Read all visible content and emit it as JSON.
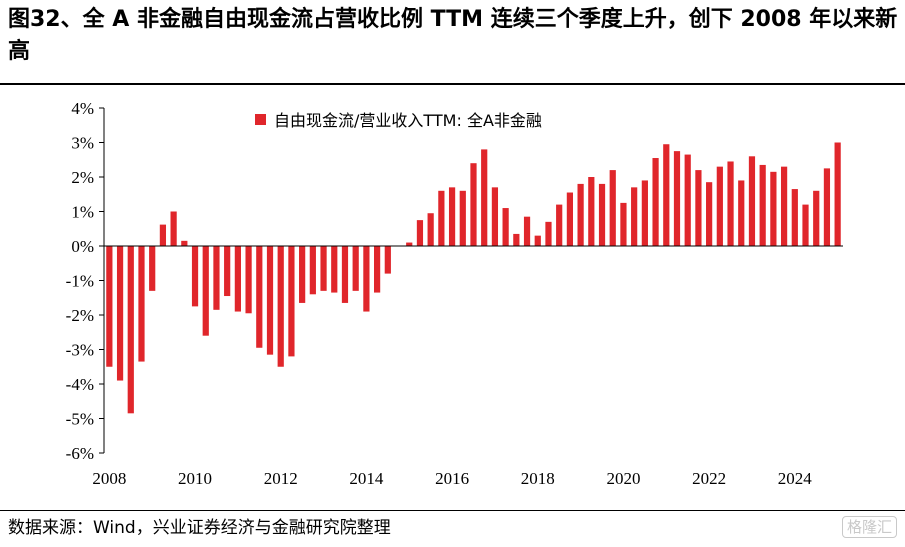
{
  "header": {
    "title": "图32、全 A 非金融自由现金流占营收比例 TTM 连续三个季度上升，创下 2008 年以来新高"
  },
  "footer": {
    "source": "数据来源：Wind，兴业证券经济与金融研究院整理",
    "watermark": "格隆汇"
  },
  "chart_data": {
    "type": "bar",
    "title": "",
    "legend": [
      "自由现金流/营业收入TTM:  全A非金融"
    ],
    "legend_position": "top-center",
    "color": "#e0262b",
    "xlabel": "",
    "ylabel": "",
    "ylim": [
      -6,
      4
    ],
    "yticks": [
      -6,
      -5,
      -4,
      -3,
      -2,
      -1,
      0,
      1,
      2,
      3,
      4
    ],
    "ytick_labels": [
      "-6%",
      "-5%",
      "-4%",
      "-3%",
      "-2%",
      "-1%",
      "0%",
      "1%",
      "2%",
      "3%",
      "4%"
    ],
    "xtick_labels": [
      "2008",
      "2010",
      "2012",
      "2014",
      "2016",
      "2018",
      "2020",
      "2022",
      "2024"
    ],
    "first_period": "2008Q1",
    "values": [
      -3.5,
      -3.9,
      -4.85,
      -3.35,
      -1.3,
      0.62,
      1.0,
      0.15,
      -1.75,
      -2.6,
      -1.85,
      -1.45,
      -1.9,
      -1.95,
      -2.95,
      -3.15,
      -3.5,
      -3.2,
      -1.65,
      -1.4,
      -1.3,
      -1.35,
      -1.65,
      -1.3,
      -1.9,
      -1.35,
      -0.8,
      0.0,
      0.1,
      0.75,
      0.95,
      1.6,
      1.7,
      1.6,
      2.4,
      2.8,
      1.7,
      1.1,
      0.35,
      0.85,
      0.3,
      0.7,
      1.2,
      1.55,
      1.8,
      2.0,
      1.8,
      2.2,
      1.25,
      1.7,
      1.9,
      2.55,
      2.95,
      2.75,
      2.65,
      2.2,
      1.85,
      2.3,
      2.45,
      1.9,
      2.6,
      2.35,
      2.15,
      2.3,
      1.65,
      1.2,
      1.6,
      2.25,
      3.0
    ]
  }
}
